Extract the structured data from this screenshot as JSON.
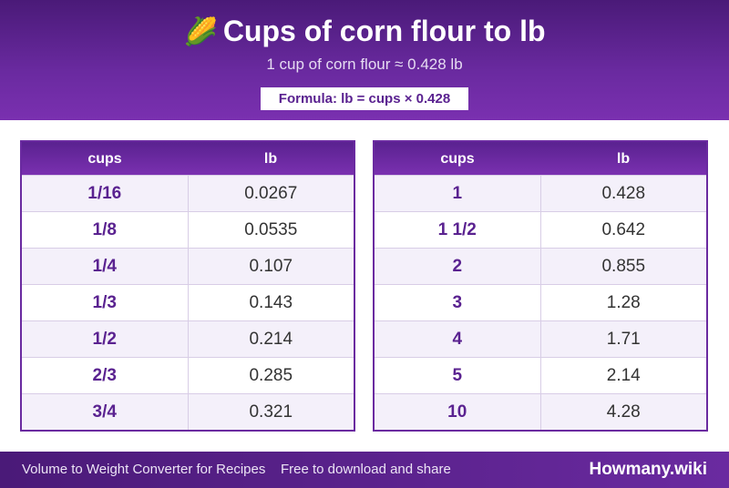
{
  "header": {
    "icon": "corn-emoji",
    "icon_glyph": "🌽",
    "title": "Cups of corn flour to lb",
    "subtitle": "1 cup of corn flour ≈ 0.428 lb",
    "formula": "Formula: lb = cups × 0.428"
  },
  "table_left": {
    "headers": [
      "cups",
      "lb"
    ],
    "rows": [
      [
        "1/16",
        "0.0267"
      ],
      [
        "1/8",
        "0.0535"
      ],
      [
        "1/4",
        "0.107"
      ],
      [
        "1/3",
        "0.143"
      ],
      [
        "1/2",
        "0.214"
      ],
      [
        "2/3",
        "0.285"
      ],
      [
        "3/4",
        "0.321"
      ]
    ]
  },
  "table_right": {
    "headers": [
      "cups",
      "lb"
    ],
    "rows": [
      [
        "1",
        "0.428"
      ],
      [
        "1 1/2",
        "0.642"
      ],
      [
        "2",
        "0.855"
      ],
      [
        "3",
        "1.28"
      ],
      [
        "4",
        "1.71"
      ],
      [
        "5",
        "2.14"
      ],
      [
        "10",
        "4.28"
      ]
    ]
  },
  "footer": {
    "description": "Volume to Weight Converter for Recipes",
    "tagline": "Free to download and share",
    "brand": "Howmany.wiki"
  }
}
